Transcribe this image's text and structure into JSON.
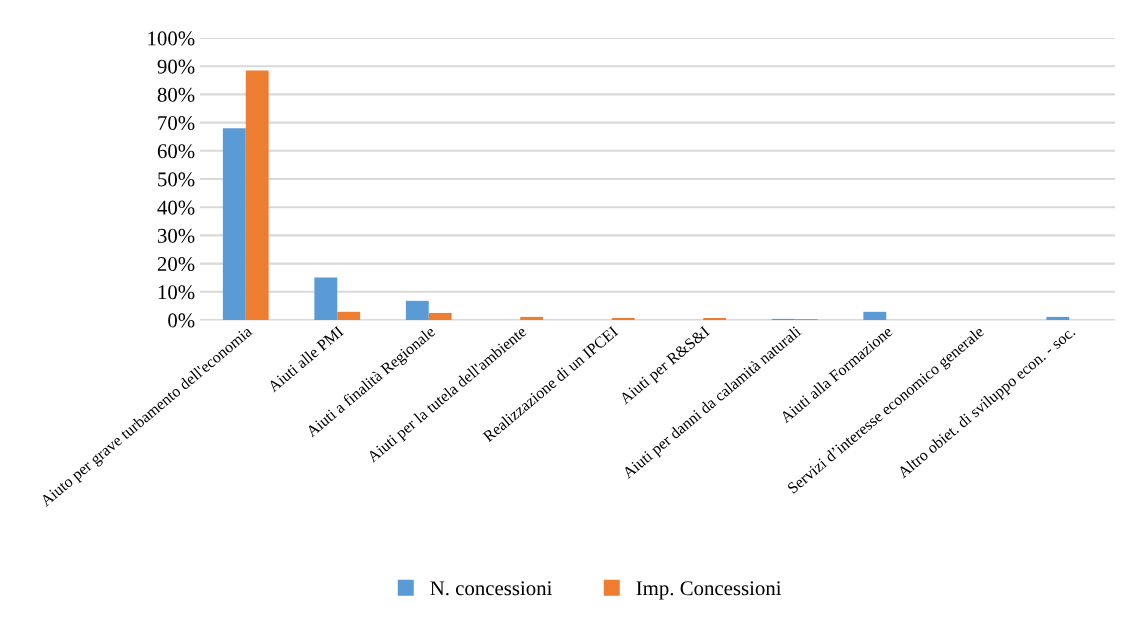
{
  "chart_data": {
    "type": "bar",
    "categories": [
      "Aiuto per grave turbamento dell'economia",
      "Aiuti alle PMI",
      "Aiuti a finalità Regionale",
      "Aiuti per la tutela dell'ambiente",
      "Realizzazione di un IPCEI",
      "Aiuti per R&S&I",
      "Aiuti per danni da calamità naturali",
      "Aiuti alla Formazione",
      "Servizi d’interesse economico generale",
      "Altro obiet. di sviluppo econ. - soc."
    ],
    "series": [
      {
        "name": "N. concessioni",
        "color": "#5b9bd5",
        "values": [
          68,
          15.1,
          6.8,
          0,
          0,
          0,
          0.4,
          2.9,
          0,
          1.1
        ]
      },
      {
        "name": "Imp. Concessioni",
        "color": "#ed7d31",
        "values": [
          88.5,
          2.9,
          2.5,
          1.1,
          0.7,
          0.7,
          0.3,
          0,
          0,
          0
        ]
      }
    ],
    "ylim": [
      0,
      100
    ],
    "yticks": [
      {
        "value": 0,
        "label": "0%"
      },
      {
        "value": 10,
        "label": "10%"
      },
      {
        "value": 20,
        "label": "20%"
      },
      {
        "value": 30,
        "label": "30%"
      },
      {
        "value": 40,
        "label": "40%"
      },
      {
        "value": 50,
        "label": "50%"
      },
      {
        "value": 60,
        "label": "60%"
      },
      {
        "value": 70,
        "label": "70%"
      },
      {
        "value": 80,
        "label": "80%"
      },
      {
        "value": 90,
        "label": "90%"
      },
      {
        "value": 100,
        "label": "100%"
      }
    ],
    "grid": "y",
    "legend": "bottom"
  }
}
